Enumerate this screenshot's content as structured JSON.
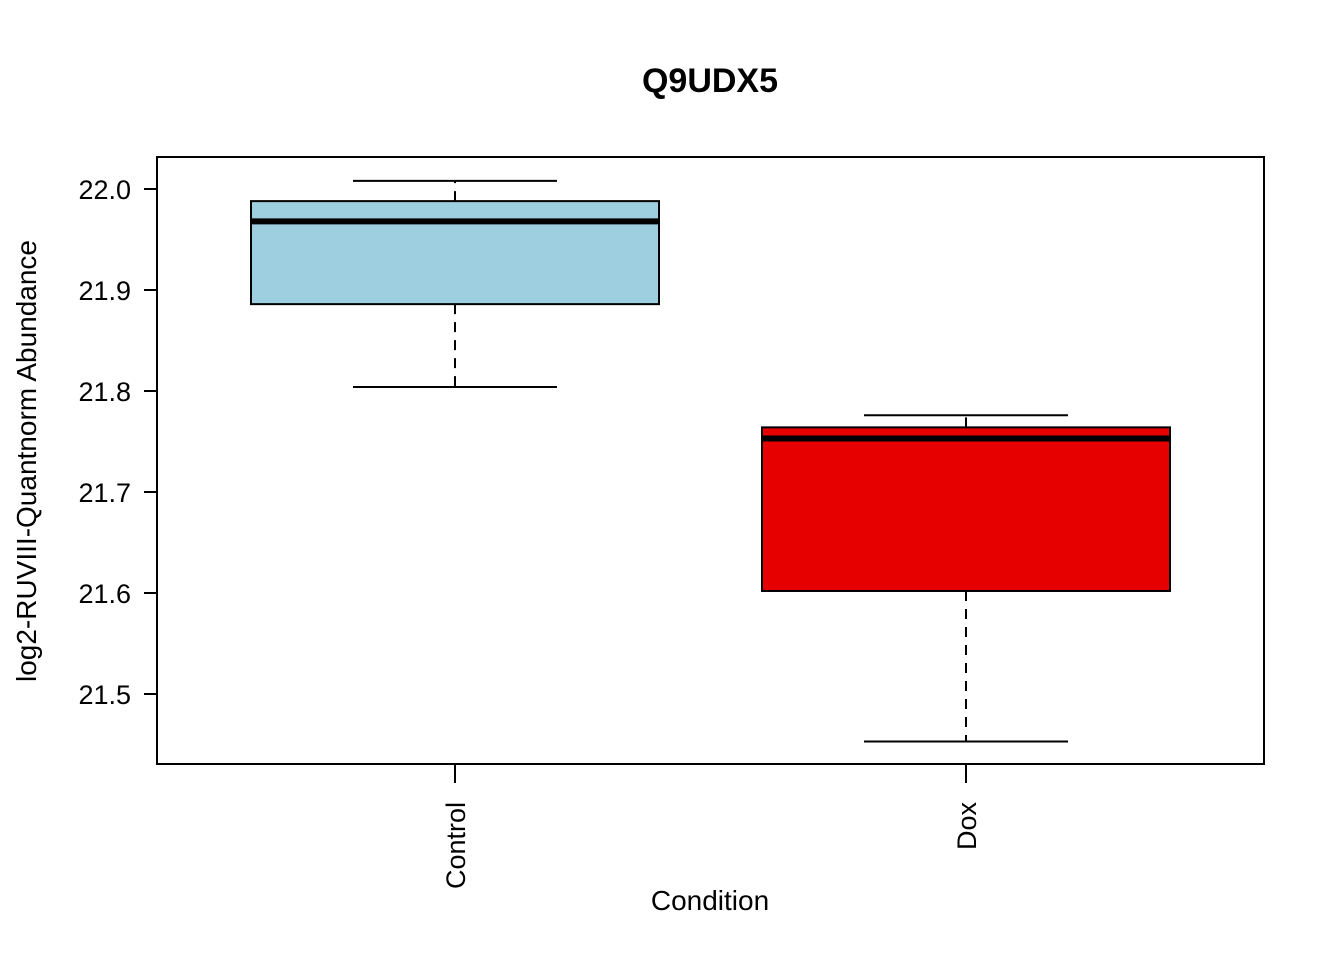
{
  "chart_data": {
    "type": "boxplot",
    "title": "Q9UDX5",
    "xlabel": "Condition",
    "ylabel": "log2-RUVIII-Quantnorm Abundance",
    "ylim": [
      1.451,
      22.03
    ],
    "yticks": [
      21.5,
      21.6,
      21.7,
      21.8,
      21.9,
      22.0
    ],
    "ytick_labels": [
      "21.5",
      "21.6",
      "21.7",
      "21.8",
      "21.9",
      "22.0"
    ],
    "categories": [
      "Control",
      "Dox"
    ],
    "boxes": [
      {
        "category": "Control",
        "whisker_low": 21.804,
        "q1": 21.886,
        "median": 21.968,
        "q3": 21.988,
        "whisker_high": 22.008,
        "color": "#9ECFE0"
      },
      {
        "category": "Dox",
        "whisker_low": 21.453,
        "q1": 21.602,
        "median": 21.753,
        "q3": 21.764,
        "whisker_high": 21.776,
        "color": "#E60000"
      }
    ],
    "grid": false,
    "legend": "none"
  }
}
